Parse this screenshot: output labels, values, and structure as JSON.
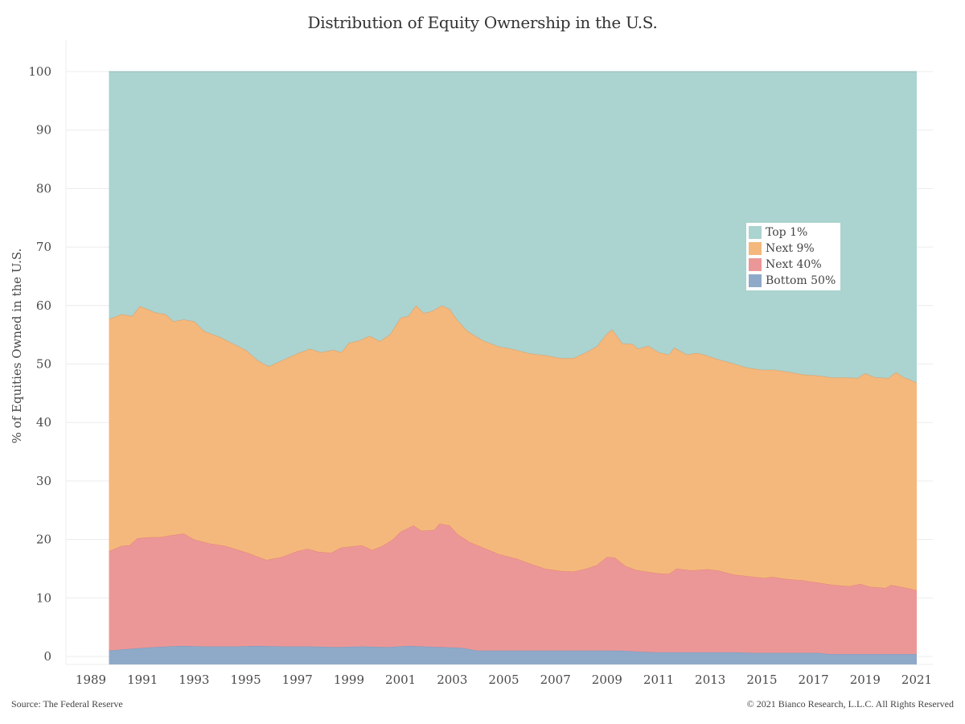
{
  "chart_data": {
    "type": "area",
    "stacked": true,
    "title": "Distribution of Equity Ownership in the U.S.",
    "xlabel": "",
    "ylabel": "% of Equities Owned in the U.S.",
    "ylim": [
      -1.4,
      104
    ],
    "xlim": [
      1988.3,
      2021.9
    ],
    "yticks": [
      0,
      10,
      20,
      30,
      40,
      50,
      60,
      70,
      80,
      90,
      100
    ],
    "xticks": [
      1989,
      1991,
      1993,
      1995,
      1997,
      1999,
      2001,
      2003,
      2005,
      2007,
      2009,
      2011,
      2013,
      2015,
      2017,
      2019,
      2021
    ],
    "grid": true,
    "legend_position": "center-right",
    "series": [
      {
        "name": "Bottom 50%",
        "color": "#8faac8",
        "cumulative_top": {
          "x": [
            1989.7,
            1990.5,
            1991.5,
            1992.5,
            1993.5,
            1994.5,
            1995.5,
            1996.5,
            1997.5,
            1998.5,
            1999.5,
            2000.5,
            2001.3,
            2002.5,
            2003.3,
            2004.0,
            2005.0,
            2006.0,
            2007.0,
            2008.0,
            2009.5,
            2010.3,
            2011.0,
            2012.0,
            2013.0,
            2014.0,
            2014.7,
            2015.5,
            2016.5,
            2017.2,
            2017.6,
            2018.5,
            2019.5,
            2020.5,
            2021.0
          ],
          "y": [
            1.0,
            1.3,
            1.6,
            1.8,
            1.7,
            1.7,
            1.8,
            1.7,
            1.7,
            1.6,
            1.7,
            1.6,
            1.8,
            1.6,
            1.5,
            1.0,
            1.0,
            1.0,
            1.0,
            1.0,
            1.0,
            0.8,
            0.7,
            0.7,
            0.7,
            0.7,
            0.6,
            0.6,
            0.6,
            0.6,
            0.4,
            0.4,
            0.4,
            0.4,
            0.4
          ]
        }
      },
      {
        "name": "Next 40%",
        "color": "#ec9797",
        "cumulative_top": {
          "x": [
            1989.7,
            1990.2,
            1990.5,
            1990.8,
            1991.3,
            1991.7,
            1992.1,
            1992.6,
            1993.0,
            1993.6,
            1994.2,
            1994.8,
            1995.2,
            1995.8,
            1996.4,
            1997.0,
            1997.4,
            1997.8,
            1998.3,
            1998.7,
            1999.1,
            1999.5,
            1999.9,
            2000.3,
            2000.7,
            2001.0,
            2001.5,
            2001.8,
            2002.3,
            2002.5,
            2002.9,
            2003.2,
            2003.7,
            2004.2,
            2004.8,
            2005.5,
            2006.0,
            2006.6,
            2007.2,
            2007.7,
            2008.2,
            2008.6,
            2009.0,
            2009.3,
            2009.7,
            2010.1,
            2010.5,
            2011.0,
            2011.4,
            2011.7,
            2012.3,
            2012.9,
            2013.3,
            2013.9,
            2014.5,
            2015.1,
            2015.4,
            2016.0,
            2016.6,
            2017.2,
            2017.8,
            2018.4,
            2018.8,
            2019.2,
            2019.8,
            2020.0,
            2020.4,
            2021.0
          ],
          "y": [
            18.0,
            18.9,
            19.0,
            20.2,
            20.4,
            20.4,
            20.7,
            21.0,
            20.0,
            19.3,
            18.9,
            18.1,
            17.5,
            16.5,
            17.0,
            18.0,
            18.4,
            17.9,
            17.7,
            18.6,
            18.8,
            19.0,
            18.2,
            18.9,
            20.0,
            21.3,
            22.4,
            21.5,
            21.6,
            22.7,
            22.4,
            20.9,
            19.5,
            18.6,
            17.5,
            16.7,
            15.9,
            15.0,
            14.6,
            14.5,
            15.0,
            15.6,
            17.0,
            16.9,
            15.5,
            14.8,
            14.5,
            14.2,
            14.1,
            15.0,
            14.7,
            14.9,
            14.7,
            14.0,
            13.7,
            13.4,
            13.6,
            13.2,
            13.0,
            12.6,
            12.2,
            12.0,
            12.4,
            11.9,
            11.7,
            12.2,
            11.9,
            11.3
          ]
        }
      },
      {
        "name": "Next 9%",
        "color": "#f4b87c",
        "cumulative_top": {
          "x": [
            1989.7,
            1990.2,
            1990.6,
            1990.9,
            1991.5,
            1991.9,
            1992.2,
            1992.6,
            1993.0,
            1993.4,
            1994.0,
            1994.5,
            1995.0,
            1995.5,
            1995.9,
            1996.4,
            1997.0,
            1997.5,
            1997.9,
            1998.4,
            1998.7,
            1999.0,
            1999.4,
            1999.8,
            2000.2,
            2000.6,
            2001.0,
            2001.3,
            2001.6,
            2001.9,
            2002.2,
            2002.6,
            2002.9,
            2003.2,
            2003.6,
            2004.2,
            2004.8,
            2005.4,
            2006.0,
            2006.6,
            2007.2,
            2007.7,
            2008.2,
            2008.6,
            2009.0,
            2009.2,
            2009.6,
            2010.0,
            2010.2,
            2010.6,
            2011.0,
            2011.4,
            2011.6,
            2012.1,
            2012.5,
            2012.9,
            2013.3,
            2013.8,
            2014.4,
            2015.0,
            2015.5,
            2016.1,
            2016.6,
            2017.2,
            2017.7,
            2018.2,
            2018.7,
            2019.0,
            2019.4,
            2019.9,
            2020.2,
            2020.5,
            2020.7,
            2021.0
          ],
          "y": [
            57.7,
            58.5,
            58.2,
            59.9,
            58.8,
            58.5,
            57.3,
            57.6,
            57.3,
            55.6,
            54.6,
            53.5,
            52.4,
            50.5,
            49.6,
            50.6,
            51.8,
            52.6,
            52.0,
            52.4,
            52.0,
            53.6,
            54.0,
            54.8,
            53.9,
            55.1,
            57.9,
            58.2,
            60.0,
            58.7,
            59.0,
            60.0,
            59.4,
            57.5,
            55.6,
            54.0,
            53.0,
            52.5,
            51.8,
            51.5,
            51.0,
            51.0,
            52.0,
            53.0,
            55.2,
            55.9,
            53.5,
            53.4,
            52.6,
            53.1,
            52.0,
            51.6,
            52.8,
            51.6,
            51.9,
            51.4,
            50.8,
            50.2,
            49.4,
            49.0,
            49.0,
            48.6,
            48.2,
            48.0,
            47.7,
            47.7,
            47.6,
            48.4,
            47.7,
            47.6,
            48.6,
            47.7,
            47.4,
            46.8
          ]
        }
      },
      {
        "name": "Top 1%",
        "color": "#abd3cf",
        "cumulative_top": {
          "x": [
            1989.7,
            2021.0
          ],
          "y": [
            100,
            100
          ]
        }
      }
    ],
    "legend": [
      {
        "label": "Top 1%",
        "color": "#abd3cf"
      },
      {
        "label": "Next 9%",
        "color": "#f4b87c"
      },
      {
        "label": "Next 40%",
        "color": "#ec9797"
      },
      {
        "label": "Bottom 50%",
        "color": "#8faac8"
      }
    ],
    "annotations": {
      "source": "Source: The Federal Reserve",
      "copyright": "© 2021 Bianco Research, L.L.C. All Rights Reserved"
    }
  }
}
